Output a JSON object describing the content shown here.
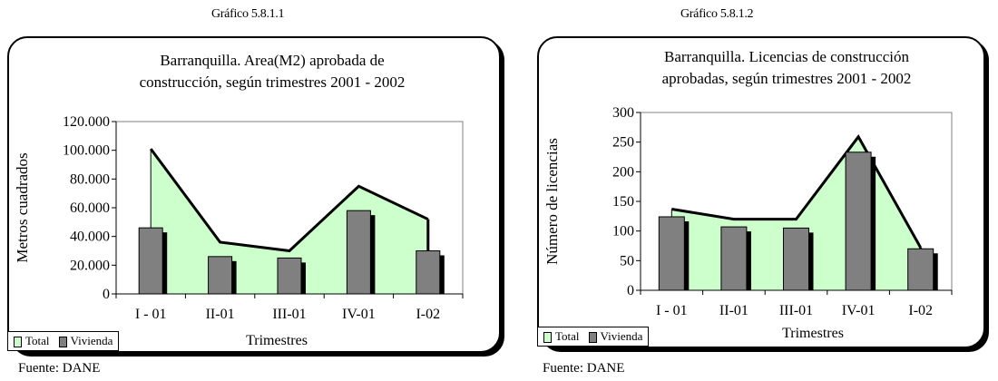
{
  "charts": [
    {
      "figure_caption": "Gráfico 5.8.1.1",
      "source_note": "Fuente: DANE",
      "legend": {
        "total": "Total",
        "vivienda": "Vivienda"
      },
      "colors": {
        "area": "#ccffcc",
        "bar": "#808080",
        "line": "#000000"
      }
    },
    {
      "figure_caption": "Gráfico 5.8.1.2",
      "source_note": "Fuente: DANE",
      "legend": {
        "total": "Total",
        "vivienda": "Vivienda"
      },
      "colors": {
        "area": "#ccffcc",
        "bar": "#808080",
        "line": "#000000"
      }
    }
  ],
  "chart_data": [
    {
      "type": "bar",
      "title": "Barranquilla. Area(M2) aprobada de construcción, según trimestres 2001 - 2002",
      "title_lines": [
        "Barranquilla. Area(M2) aprobada de",
        "construcción, según trimestres 2001 - 2002"
      ],
      "xlabel": "Trimestres",
      "ylabel": "Metros cuadrados",
      "categories": [
        "I - 01",
        "II-01",
        "III-01",
        "IV-01",
        "I-02"
      ],
      "ylim": [
        0,
        120000
      ],
      "yticks": [
        0,
        20000,
        40000,
        60000,
        80000,
        100000,
        120000
      ],
      "ytick_labels": [
        "0",
        "20.000",
        "40.000",
        "60.000",
        "80.000",
        "100.000",
        "120.000"
      ],
      "series": [
        {
          "name": "Total",
          "kind": "area",
          "values": [
            101000,
            36000,
            30000,
            75000,
            52000
          ]
        },
        {
          "name": "Vivienda",
          "kind": "bar",
          "values": [
            46000,
            26000,
            25000,
            58000,
            30000
          ]
        }
      ],
      "legend_position": "bottom-left"
    },
    {
      "type": "bar",
      "title": "Barranquilla. Licencias de construcción aprobadas, según trimestres 2001 - 2002",
      "title_lines": [
        "Barranquilla. Licencias de construcción",
        "aprobadas, según trimestres 2001 - 2002"
      ],
      "xlabel": "Trimestres",
      "ylabel": "Número de licencias",
      "categories": [
        "I - 01",
        "II-01",
        "III-01",
        "IV-01",
        "I-02"
      ],
      "ylim": [
        0,
        300
      ],
      "yticks": [
        0,
        50,
        100,
        150,
        200,
        250,
        300
      ],
      "ytick_labels": [
        "0",
        "50",
        "100",
        "150",
        "200",
        "250",
        "300"
      ],
      "series": [
        {
          "name": "Total",
          "kind": "area",
          "values": [
            137,
            120,
            120,
            259,
            72
          ]
        },
        {
          "name": "Vivienda",
          "kind": "bar",
          "values": [
            124,
            107,
            105,
            233,
            70
          ]
        }
      ],
      "legend_position": "bottom-left"
    }
  ]
}
